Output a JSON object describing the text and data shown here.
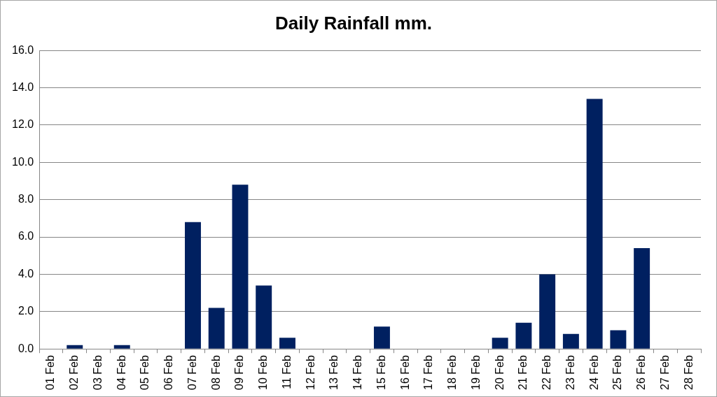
{
  "chart_data": {
    "type": "bar",
    "title": "Daily Rainfall mm.",
    "categories": [
      "01 Feb",
      "02 Feb",
      "03 Feb",
      "04 Feb",
      "05 Feb",
      "06 Feb",
      "07 Feb",
      "08 Feb",
      "09 Feb",
      "10 Feb",
      "11 Feb",
      "12 Feb",
      "13 Feb",
      "14 Feb",
      "15 Feb",
      "16 Feb",
      "17 Feb",
      "18 Feb",
      "19 Feb",
      "20 Feb",
      "21 Feb",
      "22 Feb",
      "23 Feb",
      "24 Feb",
      "25 Feb",
      "26 Feb",
      "27 Feb",
      "28 Feb"
    ],
    "values": [
      0,
      0.2,
      0,
      0.2,
      0,
      0,
      6.8,
      2.2,
      8.8,
      3.4,
      0.6,
      0,
      0,
      0,
      1.2,
      0,
      0,
      0,
      0,
      0.6,
      1.4,
      4.0,
      0.8,
      13.4,
      1.0,
      5.4,
      0,
      0
    ],
    "color": "#002060",
    "ylim": [
      0,
      16
    ],
    "yticks": [
      {
        "value": 0,
        "label": "0.0"
      },
      {
        "value": 2,
        "label": "2.0"
      },
      {
        "value": 4,
        "label": "4.0"
      },
      {
        "value": 6,
        "label": "6.0"
      },
      {
        "value": 8,
        "label": "8.0"
      },
      {
        "value": 10,
        "label": "10.0"
      },
      {
        "value": 12,
        "label": "12.0"
      },
      {
        "value": 14,
        "label": "14.0"
      },
      {
        "value": 16,
        "label": "16.0"
      }
    ],
    "grid": "y",
    "legend": false
  }
}
